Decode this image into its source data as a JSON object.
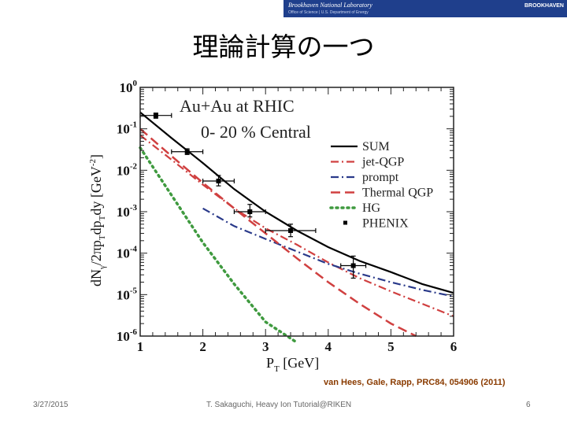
{
  "banner": {
    "lab_name": "Brookhaven National Laboratory",
    "lab_sub": "Office of Science | U.S. Department of Energy",
    "logo_text": "BROOKHAVEN"
  },
  "slide": {
    "title": "理論計算の一つ",
    "citation": "van Hees, Gale, Rapp, PRC84, 054906 (2011)"
  },
  "footer": {
    "date": "3/27/2015",
    "author": "T. Sakaguchi, Heavy Ion Tutorial@RIKEN",
    "page": "6"
  },
  "chart_data": {
    "type": "line",
    "annotations": [
      "Au+Au at RHIC",
      "0- 20 % Central"
    ],
    "xlabel": "P_T [GeV]",
    "ylabel": "dN_γ/2πp_T dp_T dy [GeV^-2]",
    "xlim": [
      1,
      6
    ],
    "ylim": [
      1e-06,
      1
    ],
    "y_scale": "log",
    "x_ticks": [
      "1",
      "2",
      "3",
      "4",
      "5",
      "6"
    ],
    "y_ticks": [
      {
        "base": "10",
        "exp": "0"
      },
      {
        "base": "10",
        "exp": "-1"
      },
      {
        "base": "10",
        "exp": "-2"
      },
      {
        "base": "10",
        "exp": "-3"
      },
      {
        "base": "10",
        "exp": "-4"
      },
      {
        "base": "10",
        "exp": "-5"
      },
      {
        "base": "10",
        "exp": "-6"
      }
    ],
    "legend_position": "right",
    "series": [
      {
        "name": "SUM",
        "color": "#000000",
        "style": "solid",
        "x": [
          1.0,
          1.5,
          2.0,
          2.5,
          3.0,
          3.5,
          4.0,
          4.5,
          5.0,
          5.5,
          6.0
        ],
        "y": [
          0.25,
          0.06,
          0.015,
          0.0035,
          0.001,
          0.00035,
          0.00014,
          6.5e-05,
          3.5e-05,
          1.8e-05,
          1.1e-05
        ]
      },
      {
        "name": "jet-QGP",
        "color": "#d04040",
        "style": "dashdot",
        "x": [
          1.0,
          1.5,
          2.0,
          2.5,
          3.0,
          3.5,
          4.0,
          4.5,
          5.0,
          5.5,
          6.0
        ],
        "y": [
          0.07,
          0.018,
          0.0045,
          0.0012,
          0.0004,
          0.00016,
          6e-05,
          2.5e-05,
          1.2e-05,
          6e-06,
          3e-06
        ]
      },
      {
        "name": "prompt",
        "color": "#2a3a8a",
        "style": "dashdot",
        "x": [
          2.0,
          2.5,
          3.0,
          3.5,
          4.0,
          4.5,
          5.0,
          5.5,
          6.0
        ],
        "y": [
          0.0012,
          0.00045,
          0.00022,
          0.00011,
          5.5e-05,
          3.2e-05,
          2e-05,
          1.3e-05,
          9e-06
        ]
      },
      {
        "name": "Thermal QGP",
        "color": "#d04040",
        "style": "dashed",
        "x": [
          1.0,
          1.5,
          2.0,
          2.5,
          3.0,
          3.5,
          4.0,
          4.5,
          5.0,
          5.4
        ],
        "y": [
          0.1,
          0.022,
          0.005,
          0.0012,
          0.0003,
          7.5e-05,
          2e-05,
          6e-06,
          2e-06,
          1e-06
        ]
      },
      {
        "name": "HG",
        "color": "#3f9a3f",
        "style": "dotted",
        "x": [
          1.0,
          1.5,
          2.0,
          2.5,
          3.0,
          3.5
        ],
        "y": [
          0.035,
          0.0025,
          0.00018,
          1.8e-05,
          2.2e-06,
          7e-07
        ]
      }
    ],
    "data_series": {
      "name": "PHENIX",
      "color": "#000000",
      "points": [
        {
          "x": 1.25,
          "y": 0.21,
          "xerr": 0.25,
          "ylo": 0.18,
          "yhi": 0.24
        },
        {
          "x": 1.75,
          "y": 0.028,
          "xerr": 0.25,
          "ylo": 0.024,
          "yhi": 0.033
        },
        {
          "x": 2.25,
          "y": 0.0055,
          "xerr": 0.25,
          "ylo": 0.0042,
          "yhi": 0.0075
        },
        {
          "x": 2.75,
          "y": 0.001,
          "xerr": 0.25,
          "ylo": 0.00075,
          "yhi": 0.0015
        },
        {
          "x": 3.4,
          "y": 0.00035,
          "xerr": 0.4,
          "ylo": 0.00025,
          "yhi": 0.0005
        },
        {
          "x": 4.4,
          "y": 5e-05,
          "xerr": 0.2,
          "ylo": 2.5e-05,
          "yhi": 8.5e-05
        }
      ]
    }
  }
}
